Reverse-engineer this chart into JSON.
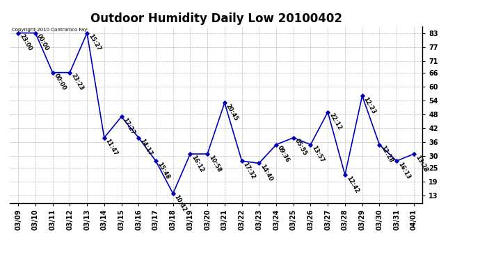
{
  "title": "Outdoor Humidity Daily Low 20100402",
  "copyright_text": "Copyright 2010 Contronico Fay",
  "x_labels": [
    "03/09",
    "03/10",
    "03/11",
    "03/12",
    "03/13",
    "03/14",
    "03/15",
    "03/16",
    "03/17",
    "03/18",
    "03/19",
    "03/20",
    "03/21",
    "03/22",
    "03/23",
    "03/24",
    "03/25",
    "03/26",
    "03/27",
    "03/28",
    "03/29",
    "03/30",
    "03/31",
    "04/01"
  ],
  "point_labels_per_x": [
    {
      "x": 0,
      "label": "23:00",
      "value": 83
    },
    {
      "x": 1,
      "label": "00:00",
      "value": 83
    },
    {
      "x": 2,
      "label": "00:00",
      "value": 66
    },
    {
      "x": 3,
      "label": "23:23",
      "value": 66
    },
    {
      "x": 4,
      "label": "15:27",
      "value": 83
    },
    {
      "x": 5,
      "label": "11:47",
      "value": 38
    },
    {
      "x": 6,
      "label": "17:27",
      "value": 47
    },
    {
      "x": 7,
      "label": "14:17",
      "value": 38
    },
    {
      "x": 8,
      "label": "15:48",
      "value": 28
    },
    {
      "x": 9,
      "label": "10:42",
      "value": 14
    },
    {
      "x": 10,
      "label": "16:12",
      "value": 31
    },
    {
      "x": 11,
      "label": "10:58",
      "value": 31
    },
    {
      "x": 12,
      "label": "20:45",
      "value": 53
    },
    {
      "x": 13,
      "label": "17:32",
      "value": 28
    },
    {
      "x": 14,
      "label": "14:40",
      "value": 27
    },
    {
      "x": 15,
      "label": "09:36",
      "value": 35
    },
    {
      "x": 16,
      "label": "05:55",
      "value": 38
    },
    {
      "x": 17,
      "label": "13:57",
      "value": 35
    },
    {
      "x": 18,
      "label": "22:12",
      "value": 49
    },
    {
      "x": 19,
      "label": "12:42",
      "value": 22
    },
    {
      "x": 20,
      "label": "12:23",
      "value": 56
    },
    {
      "x": 21,
      "label": "12:28",
      "value": 35
    },
    {
      "x": 22,
      "label": "16:13",
      "value": 28
    },
    {
      "x": 23,
      "label": "13:28",
      "value": 31
    }
  ],
  "yticks": [
    13,
    19,
    25,
    30,
    36,
    42,
    48,
    54,
    60,
    66,
    71,
    77,
    83
  ],
  "ylim": [
    10,
    86
  ],
  "line_color": "#0000bb",
  "bg_color": "#ffffff",
  "grid_color": "#bbbbbb",
  "title_fontsize": 12,
  "tick_fontsize": 7,
  "annot_fontsize": 6
}
